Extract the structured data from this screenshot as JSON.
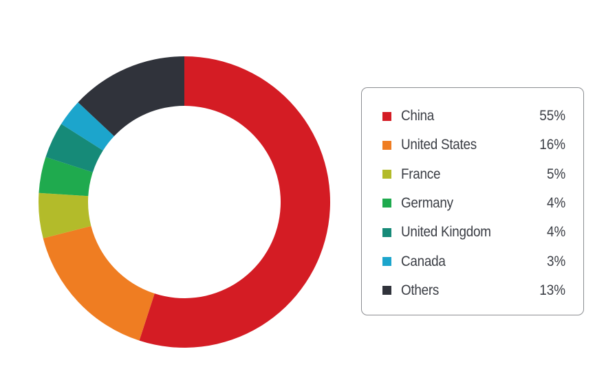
{
  "chart_data": {
    "type": "pie",
    "variant": "donut",
    "start_angle": "12 o'clock, clockwise",
    "legend_position": "right",
    "categories": [
      "China",
      "United States",
      "France",
      "Germany",
      "United Kingdom",
      "Canada",
      "Others"
    ],
    "values": [
      55,
      16,
      5,
      4,
      4,
      3,
      13
    ],
    "value_labels": [
      "55%",
      "16%",
      "5%",
      "4%",
      "4%",
      "3%",
      "13%"
    ],
    "colors": [
      "#d41c24",
      "#ef7d22",
      "#b3bb2a",
      "#1faa4e",
      "#168a78",
      "#1ca5cc",
      "#30333b"
    ]
  }
}
